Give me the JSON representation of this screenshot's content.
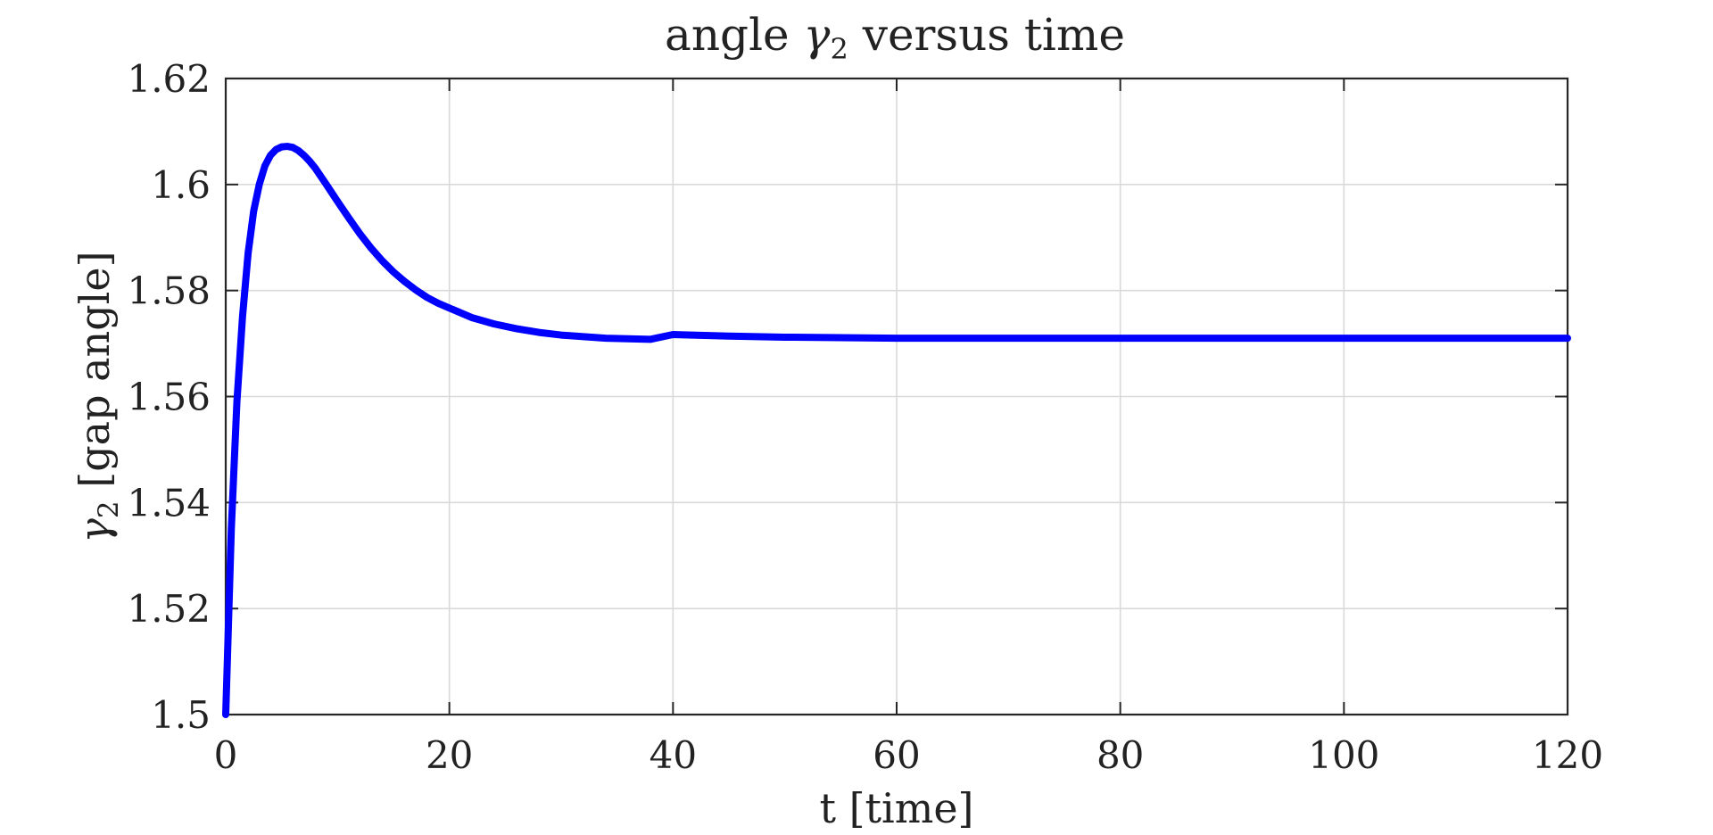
{
  "chart_data": {
    "type": "line",
    "title": {
      "prefix": "angle ",
      "symbol": "γ",
      "subscript": "2",
      "suffix": " versus time"
    },
    "xlabel": "t [time]",
    "ylabel": {
      "symbol": "γ",
      "subscript": "2",
      "suffix": " [gap angle]"
    },
    "xlim": [
      0,
      120
    ],
    "ylim": [
      1.5,
      1.62
    ],
    "xticks": [
      0,
      20,
      40,
      60,
      80,
      100,
      120
    ],
    "yticks": [
      1.5,
      1.52,
      1.54,
      1.56,
      1.58,
      1.6,
      1.62
    ],
    "xtick_labels": [
      "0",
      "20",
      "40",
      "60",
      "80",
      "100",
      "120"
    ],
    "ytick_labels": [
      "1.5",
      "1.52",
      "1.54",
      "1.56",
      "1.58",
      "1.6",
      "1.62"
    ],
    "grid": true,
    "line_color": "#0000ff",
    "series": [
      {
        "x": [
          0,
          0.5,
          1,
          1.5,
          2,
          2.5,
          3,
          3.5,
          4,
          4.5,
          5,
          5.5,
          6,
          6.5,
          7,
          7.5,
          8,
          9,
          10,
          11,
          12,
          13,
          14,
          15,
          16,
          17,
          18,
          19,
          20,
          22,
          24,
          26,
          28,
          30,
          32,
          34,
          36,
          38,
          40,
          45,
          50,
          55,
          60,
          70,
          80,
          90,
          100,
          110,
          120
        ],
        "values": [
          1.5,
          1.535,
          1.559,
          1.575,
          1.587,
          1.595,
          1.6,
          1.6035,
          1.6055,
          1.6066,
          1.6071,
          1.6072,
          1.607,
          1.6064,
          1.6055,
          1.6044,
          1.6031,
          1.6,
          1.5968,
          1.5937,
          1.5907,
          1.588,
          1.5856,
          1.5835,
          1.5817,
          1.5801,
          1.5787,
          1.5776,
          1.5767,
          1.5749,
          1.5737,
          1.5728,
          1.5721,
          1.5716,
          1.5713,
          1.571,
          1.5709,
          1.5708,
          1.5717,
          1.5714,
          1.5712,
          1.5711,
          1.571,
          1.571,
          1.571,
          1.571,
          1.571,
          1.571,
          1.571
        ]
      }
    ]
  }
}
